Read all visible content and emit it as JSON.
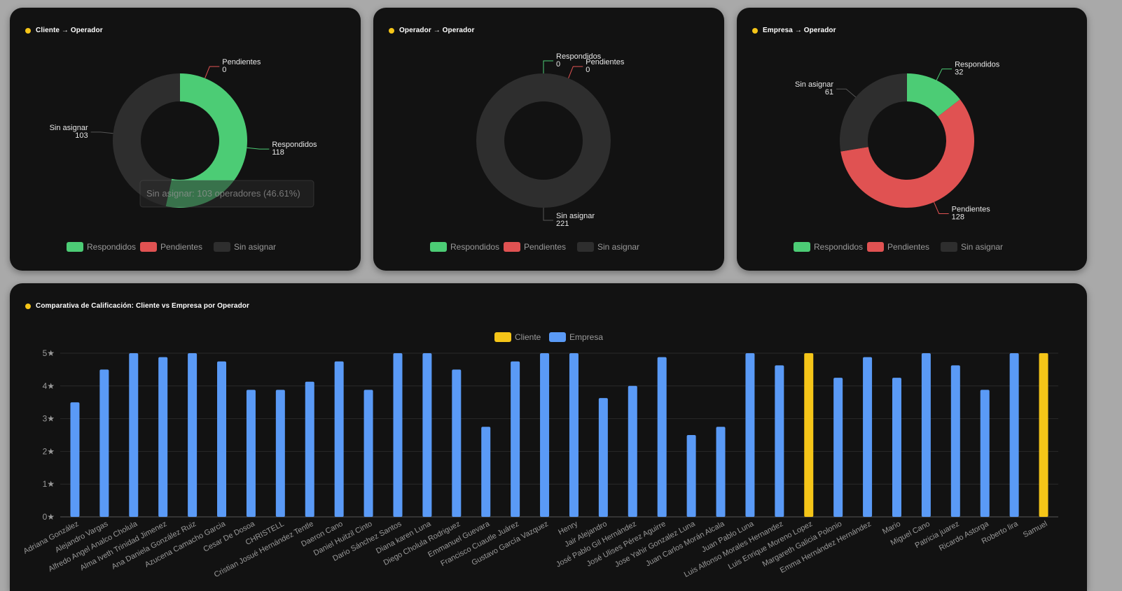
{
  "colors": {
    "respondidos": "#4ccc75",
    "pendientes": "#e05252",
    "sin_asignar": "#2e2e2e",
    "cliente": "#f5c518",
    "empresa": "#5a9af6",
    "accent": "#f5c518"
  },
  "chart_data": [
    {
      "type": "pie",
      "title": "Cliente → Operador",
      "labels": [
        "Respondidos",
        "Pendientes",
        "Sin asignar"
      ],
      "values": [
        118,
        0,
        103
      ],
      "legend": [
        "Respondidos",
        "Pendientes",
        "Sin asignar"
      ],
      "tooltip": "Sin asignar: 103 operadores (46.61%)"
    },
    {
      "type": "pie",
      "title": "Operador → Operador",
      "labels": [
        "Respondidos",
        "Pendientes",
        "Sin asignar"
      ],
      "values": [
        0,
        0,
        221
      ],
      "legend": [
        "Respondidos",
        "Pendientes",
        "Sin asignar"
      ]
    },
    {
      "type": "pie",
      "title": "Empresa → Operador",
      "labels": [
        "Respondidos",
        "Pendientes",
        "Sin asignar"
      ],
      "values": [
        32,
        128,
        61
      ],
      "legend": [
        "Respondidos",
        "Pendientes",
        "Sin asignar"
      ]
    },
    {
      "type": "bar",
      "title": "Comparativa de Calificación: Cliente vs Empresa por Operador",
      "legend": [
        "Cliente",
        "Empresa"
      ],
      "ylim": [
        0,
        5
      ],
      "yticks": [
        "0★",
        "1★",
        "2★",
        "3★",
        "4★",
        "5★"
      ],
      "categories": [
        "Adriana González",
        "Alejandro Vargas",
        "Alfredo Angel Analco Cholula",
        "Alma Iveth Trinidad Jimenez",
        "Ana Daniela González Ruiz",
        "Azucena Camacho Garcia",
        "Cesar De Dosoa",
        "CHRISTELL",
        "Cristian Josué Hernández Tentle",
        "Daeron Cano",
        "Daniel Huitzil Cinto",
        "Dario Sánchez Santos",
        "Diana karen Luna",
        "Diego Cholula Rodriguez",
        "Emmanuel Guevara",
        "Francisco Cuautle Juárez",
        "Gustavo García Vazquez",
        "Henry",
        "Jair Alejandro",
        "José Pablo Gil Hernández",
        "José Ulises Pérez Aguirre",
        "Jose Yahir Gonzalez Luna",
        "Juan Carlos Morán Alcala",
        "Juan Pablo Luna",
        "Luis Alfonso Morales Hernandez",
        "Luis Enrique Moreno Lopez",
        "Margareth Galicia Polonio",
        "Emma Hernández Hernández",
        "Mario",
        "Miguel Cano",
        "Patricia juarez",
        "Ricardo Astorga",
        "Roberto lira",
        "Samuel"
      ],
      "series": [
        {
          "name": "Cliente",
          "values": [
            null,
            null,
            null,
            null,
            null,
            null,
            null,
            null,
            null,
            null,
            null,
            null,
            null,
            null,
            null,
            null,
            null,
            null,
            null,
            null,
            null,
            null,
            null,
            null,
            null,
            5,
            null,
            null,
            null,
            null,
            null,
            null,
            null,
            5
          ]
        },
        {
          "name": "Empresa",
          "values": [
            3.5,
            4.5,
            5,
            4.88,
            5,
            4.75,
            3.88,
            3.88,
            4.13,
            4.75,
            3.88,
            5,
            5,
            4.5,
            2.75,
            4.75,
            5,
            5,
            3.63,
            4,
            4.88,
            2.5,
            2.75,
            5,
            4.63,
            null,
            4.25,
            4.88,
            4.25,
            5,
            4.63,
            3.88,
            5,
            null
          ]
        }
      ]
    }
  ]
}
